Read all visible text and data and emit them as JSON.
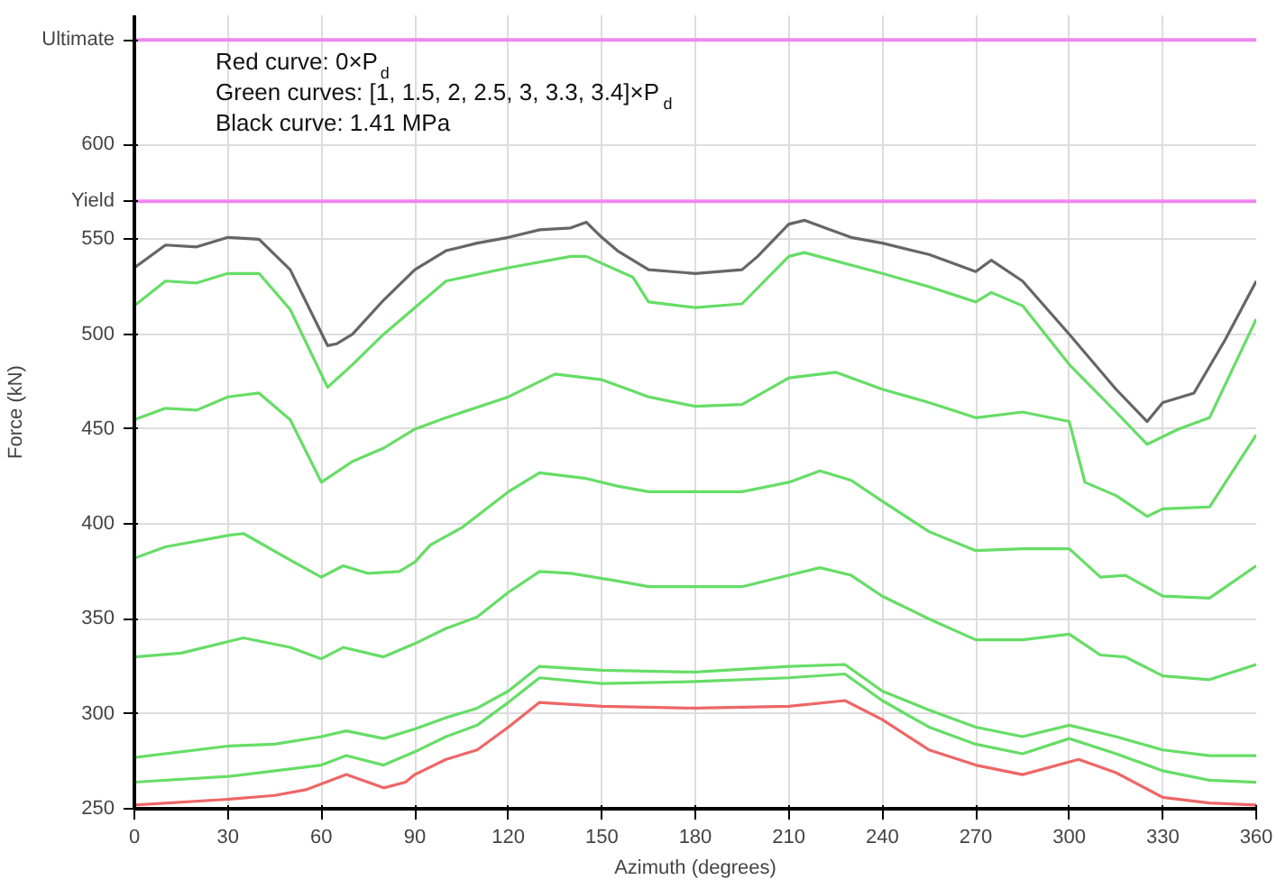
{
  "chart_data": {
    "type": "line",
    "xlabel": "Azimuth (degrees)",
    "ylabel": "Force (kN)",
    "xlim": [
      0,
      360
    ],
    "xticks": [
      0,
      30,
      60,
      90,
      120,
      150,
      180,
      210,
      240,
      270,
      300,
      330,
      360
    ],
    "ylim": [
      250,
      668
    ],
    "yticks": [
      250,
      300,
      350,
      400,
      450,
      500,
      550,
      600
    ],
    "grid": true,
    "line_style": "solid",
    "ref_lines": [
      {
        "axis": "y",
        "value": 570,
        "label": "Yield",
        "color": "#ee88ee"
      },
      {
        "axis": "y",
        "value": 655,
        "label": "Ultimate",
        "color": "#ee88ee"
      }
    ],
    "annotations": [
      "Red curve: 0×P$_{d}$",
      "Green curves: [1, 1.5, 2, 2.5, 3, 3.3, 3.4]×P$_{d}$",
      "Black curve: 1.41 MPa"
    ],
    "series": [
      {
        "color": "#666666",
        "x": [
          0,
          10,
          20,
          30,
          40,
          50,
          62,
          65,
          70,
          80,
          90,
          100,
          110,
          120,
          130,
          140,
          145,
          150,
          155,
          165,
          180,
          195,
          200,
          210,
          215,
          230,
          240,
          255,
          270,
          275,
          285,
          300,
          315,
          325,
          330,
          340,
          350,
          360
        ],
        "values": [
          535,
          547,
          546,
          551,
          550,
          534,
          494,
          495,
          500,
          518,
          534,
          544,
          548,
          551,
          555,
          556,
          559,
          551,
          544,
          534,
          532,
          534,
          541,
          558,
          560,
          551,
          548,
          542,
          533,
          539,
          528,
          500,
          471,
          454,
          464,
          469,
          497,
          528
        ]
      },
      {
        "color": "#66dd66",
        "x": [
          0,
          10,
          20,
          30,
          40,
          50,
          62,
          70,
          80,
          90,
          100,
          120,
          140,
          145,
          160,
          165,
          180,
          195,
          210,
          215,
          240,
          255,
          270,
          275,
          285,
          300,
          315,
          325,
          335,
          345,
          360
        ],
        "values": [
          515,
          528,
          527,
          532,
          532,
          513,
          472,
          484,
          500,
          514,
          528,
          535,
          541,
          541,
          530,
          517,
          514,
          516,
          541,
          543,
          532,
          525,
          517,
          522,
          515,
          484,
          459,
          442,
          450,
          456,
          508
        ]
      },
      {
        "color": "#66dd66",
        "x": [
          0,
          10,
          20,
          30,
          40,
          50,
          60,
          70,
          80,
          90,
          100,
          120,
          135,
          150,
          160,
          165,
          180,
          195,
          210,
          225,
          240,
          255,
          270,
          285,
          300,
          305,
          315,
          325,
          330,
          345,
          360
        ],
        "values": [
          455,
          461,
          460,
          467,
          469,
          455,
          422,
          433,
          440,
          450,
          456,
          467,
          479,
          476,
          470,
          467,
          462,
          463,
          477,
          480,
          471,
          464,
          456,
          459,
          454,
          422,
          415,
          404,
          408,
          409,
          447
        ]
      },
      {
        "color": "#66dd66",
        "x": [
          0,
          10,
          30,
          35,
          50,
          60,
          67,
          75,
          85,
          90,
          95,
          105,
          120,
          130,
          145,
          155,
          165,
          180,
          195,
          210,
          220,
          230,
          240,
          255,
          270,
          285,
          300,
          310,
          318,
          330,
          345,
          360
        ],
        "values": [
          382,
          388,
          394,
          395,
          381,
          372,
          378,
          374,
          375,
          380,
          389,
          398,
          417,
          427,
          424,
          420,
          417,
          417,
          417,
          422,
          428,
          423,
          412,
          396,
          386,
          387,
          387,
          372,
          373,
          362,
          361,
          378
        ]
      },
      {
        "color": "#66dd66",
        "x": [
          0,
          15,
          35,
          50,
          60,
          67,
          80,
          90,
          100,
          110,
          120,
          130,
          140,
          155,
          165,
          180,
          195,
          210,
          220,
          230,
          240,
          255,
          270,
          285,
          300,
          310,
          318,
          330,
          345,
          360
        ],
        "values": [
          330,
          332,
          340,
          335,
          329,
          335,
          330,
          337,
          345,
          351,
          364,
          375,
          374,
          370,
          367,
          367,
          367,
          373,
          377,
          373,
          362,
          350,
          339,
          339,
          342,
          331,
          330,
          320,
          318,
          326
        ]
      },
      {
        "color": "#66dd66",
        "x": [
          0,
          30,
          45,
          60,
          68,
          80,
          90,
          100,
          110,
          120,
          130,
          150,
          180,
          210,
          228,
          240,
          255,
          270,
          285,
          300,
          315,
          330,
          345,
          360
        ],
        "values": [
          277,
          283,
          284,
          288,
          291,
          287,
          292,
          298,
          303,
          312,
          325,
          323,
          322,
          325,
          326,
          312,
          302,
          293,
          288,
          294,
          288,
          281,
          278,
          278
        ]
      },
      {
        "color": "#66dd66",
        "x": [
          0,
          30,
          60,
          68,
          80,
          90,
          100,
          110,
          120,
          130,
          150,
          180,
          210,
          228,
          240,
          255,
          270,
          285,
          300,
          315,
          330,
          345,
          360
        ],
        "values": [
          264,
          267,
          273,
          278,
          273,
          280,
          288,
          294,
          306,
          319,
          316,
          317,
          319,
          321,
          307,
          293,
          284,
          279,
          287,
          279,
          270,
          265,
          264
        ]
      },
      {
        "color": "#ee6666",
        "x": [
          0,
          30,
          45,
          55,
          68,
          80,
          87,
          90,
          100,
          110,
          120,
          130,
          150,
          180,
          210,
          228,
          240,
          255,
          270,
          285,
          303,
          315,
          330,
          345,
          360
        ],
        "values": [
          252,
          255,
          257,
          260,
          268,
          261,
          264,
          268,
          276,
          281,
          293,
          306,
          304,
          303,
          304,
          307,
          297,
          281,
          273,
          268,
          276,
          269,
          256,
          253,
          252
        ]
      }
    ]
  }
}
